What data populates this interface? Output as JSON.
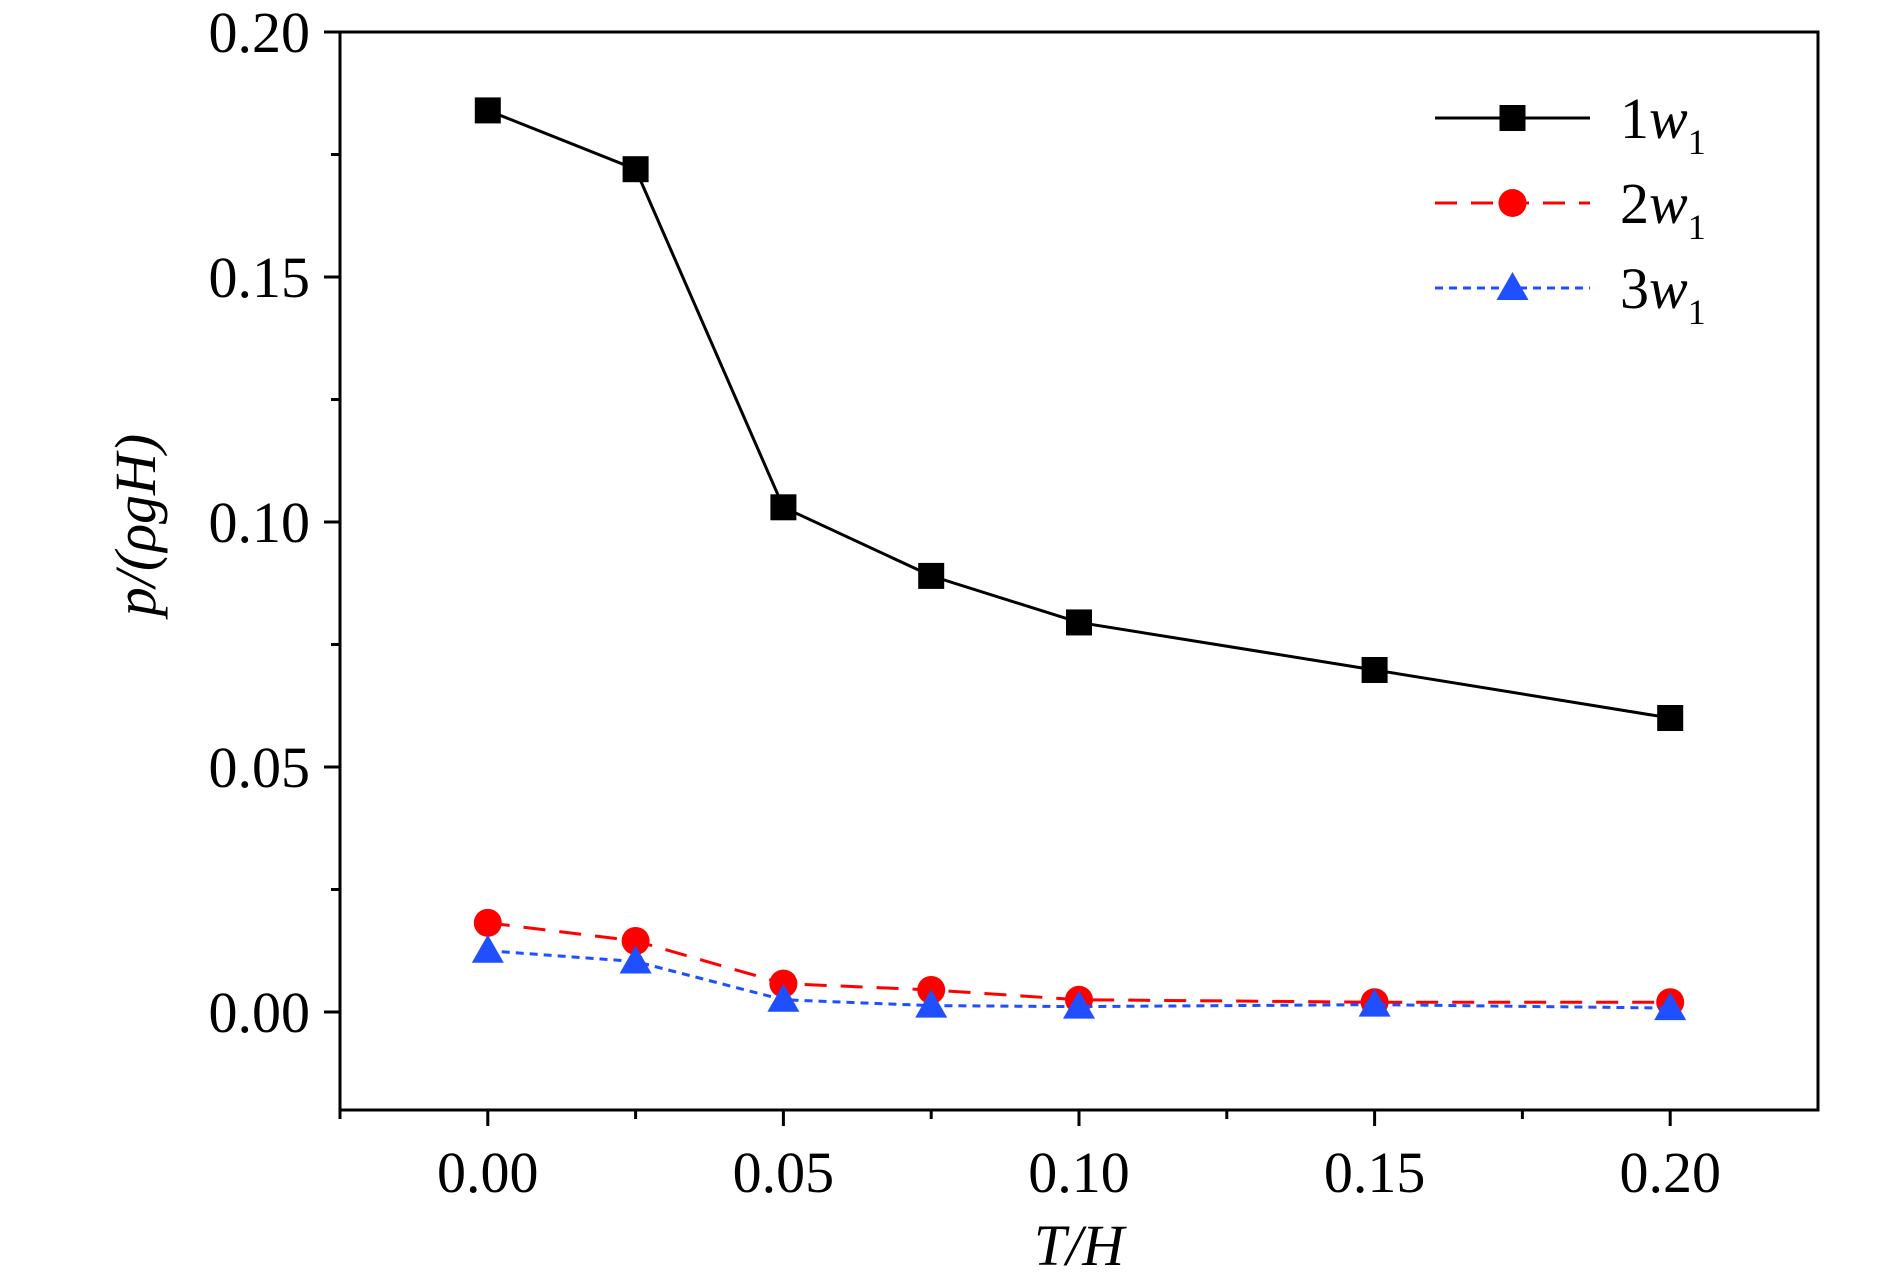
{
  "chart_data": {
    "type": "line",
    "x": [
      0.0,
      0.025,
      0.05,
      0.075,
      0.1,
      0.15,
      0.2
    ],
    "series": [
      {
        "name": "1w1",
        "legend_prefix": "1",
        "legend_var": "w",
        "legend_sub": "1",
        "marker": "square",
        "dash": "solid",
        "color": "#000000",
        "values": [
          0.184,
          0.172,
          0.103,
          0.089,
          0.0795,
          0.0698,
          0.06
        ]
      },
      {
        "name": "2w1",
        "legend_prefix": "2",
        "legend_var": "w",
        "legend_sub": "1",
        "marker": "circle",
        "dash": "dashed",
        "color": "#ff0000",
        "values": [
          0.0182,
          0.0145,
          0.0058,
          0.0045,
          0.0025,
          0.002,
          0.002
        ]
      },
      {
        "name": "3w1",
        "legend_prefix": "3",
        "legend_var": "w",
        "legend_sub": "1",
        "marker": "triangle",
        "dash": "dotted",
        "color": "#1f4fff",
        "values": [
          0.0125,
          0.0103,
          0.0025,
          0.0013,
          0.0011,
          0.0015,
          0.0008
        ]
      }
    ],
    "xlabel": "T/H",
    "ylabel": "p/(ρgH)",
    "xlim": [
      -0.025,
      0.225
    ],
    "ylim": [
      -0.02,
      0.2
    ],
    "xticks": [
      "0.00",
      "0.05",
      "0.10",
      "0.15",
      "0.20"
    ],
    "xtick_values": [
      0.0,
      0.05,
      0.1,
      0.15,
      0.2
    ],
    "yticks": [
      "0.00",
      "0.05",
      "0.10",
      "0.15",
      "0.20"
    ],
    "ytick_values": [
      0.0,
      0.05,
      0.1,
      0.15,
      0.2
    ],
    "legend_position": "top-right",
    "grid": false
  }
}
